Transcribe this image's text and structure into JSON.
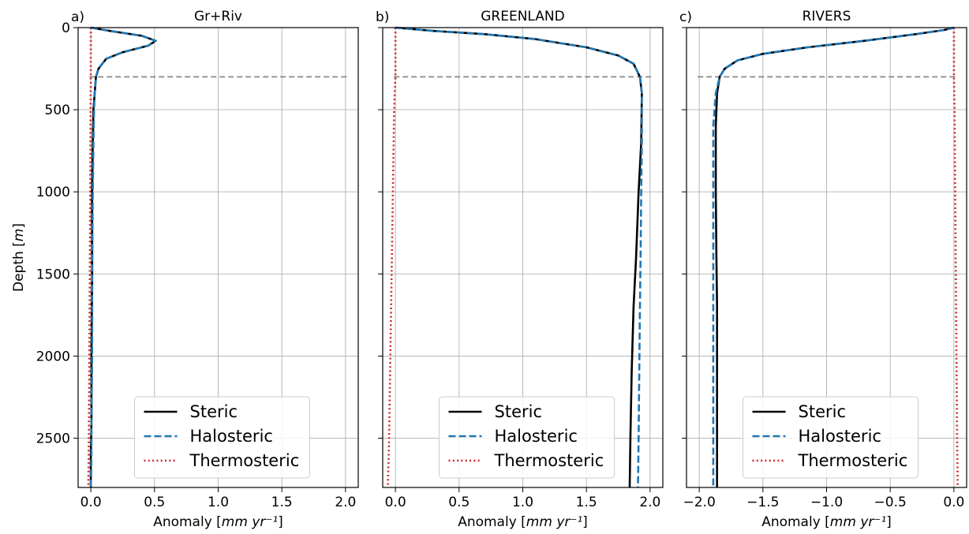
{
  "chart_data": [
    {
      "type": "line",
      "panel_label": "a)",
      "title": "Gr+Riv",
      "xlabel": "Anomaly [mm yr⁻¹]",
      "ylabel": "Depth [m]",
      "xlim": [
        -0.1,
        2.1
      ],
      "ylim": [
        2800,
        0
      ],
      "xticks": [
        0.0,
        0.5,
        1.0,
        1.5,
        2.0
      ],
      "xtick_labels": [
        "0.0",
        "0.5",
        "1.0",
        "1.5",
        "2.0"
      ],
      "yticks": [
        0,
        500,
        1000,
        1500,
        2000,
        2500
      ],
      "ytick_labels": [
        "0",
        "500",
        "1000",
        "1500",
        "2000",
        "2500"
      ],
      "grid": true,
      "legend_position": "lower-center",
      "reference_depth": 300,
      "series": [
        {
          "name": "Steric",
          "color": "#000000",
          "style": "solid",
          "x": [
            0.0,
            0.15,
            0.4,
            0.51,
            0.45,
            0.25,
            0.12,
            0.06,
            0.04,
            0.03,
            0.02,
            0.015,
            0.01,
            0.01,
            0.005,
            0.005,
            0.0,
            0.0
          ],
          "y": [
            0,
            20,
            50,
            80,
            110,
            150,
            190,
            250,
            300,
            400,
            500,
            700,
            1000,
            1500,
            2000,
            2400,
            2600,
            2800
          ]
        },
        {
          "name": "Halosteric",
          "color": "#1f77b4",
          "style": "dashed",
          "x": [
            0.0,
            0.15,
            0.4,
            0.51,
            0.45,
            0.25,
            0.12,
            0.06,
            0.04,
            0.03,
            0.025,
            0.02,
            0.015,
            0.01,
            0.01,
            0.005,
            0.005,
            0.0
          ],
          "y": [
            0,
            20,
            50,
            80,
            110,
            150,
            190,
            250,
            300,
            400,
            500,
            700,
            1000,
            1500,
            2000,
            2400,
            2600,
            2800
          ]
        },
        {
          "name": "Thermosteric",
          "color": "#d62728",
          "style": "dotted",
          "x": [
            0.0,
            0.0,
            -0.002,
            -0.005,
            -0.008,
            -0.012,
            -0.016,
            -0.02
          ],
          "y": [
            0,
            300,
            500,
            1000,
            1500,
            2000,
            2500,
            2800
          ]
        }
      ]
    },
    {
      "type": "line",
      "panel_label": "b)",
      "title": "GREENLAND",
      "xlabel": "Anomaly [mm yr⁻¹]",
      "ylabel": "",
      "xlim": [
        -0.1,
        2.1
      ],
      "ylim": [
        2800,
        0
      ],
      "xticks": [
        0.0,
        0.5,
        1.0,
        1.5,
        2.0
      ],
      "xtick_labels": [
        "0.0",
        "0.5",
        "1.0",
        "1.5",
        "2.0"
      ],
      "yticks": [
        0,
        500,
        1000,
        1500,
        2000,
        2500
      ],
      "ytick_labels": [],
      "grid": true,
      "legend_position": "lower-center",
      "reference_depth": 300,
      "series": [
        {
          "name": "Steric",
          "color": "#000000",
          "style": "solid",
          "x": [
            0.0,
            0.3,
            0.7,
            1.1,
            1.5,
            1.75,
            1.87,
            1.92,
            1.935,
            1.93,
            1.91,
            1.89,
            1.87,
            1.855,
            1.845,
            1.84
          ],
          "y": [
            0,
            20,
            40,
            70,
            120,
            170,
            220,
            300,
            400,
            700,
            1000,
            1400,
            1700,
            2100,
            2500,
            2800
          ]
        },
        {
          "name": "Halosteric",
          "color": "#1f77b4",
          "style": "dashed",
          "x": [
            0.0,
            0.3,
            0.7,
            1.1,
            1.5,
            1.75,
            1.87,
            1.92,
            1.935,
            1.935,
            1.93,
            1.925,
            1.92,
            1.915,
            1.91,
            1.905
          ],
          "y": [
            0,
            20,
            40,
            70,
            120,
            170,
            220,
            300,
            400,
            700,
            1000,
            1400,
            1700,
            2100,
            2500,
            2800
          ]
        },
        {
          "name": "Thermosteric",
          "color": "#d62728",
          "style": "dotted",
          "x": [
            0.0,
            0.0,
            -0.01,
            -0.02,
            -0.03,
            -0.04,
            -0.05,
            -0.06
          ],
          "y": [
            0,
            300,
            500,
            1000,
            1500,
            2000,
            2500,
            2800
          ]
        }
      ]
    },
    {
      "type": "line",
      "panel_label": "c)",
      "title": "RIVERS",
      "xlabel": "Anomaly [mm yr⁻¹]",
      "ylabel": "",
      "xlim": [
        -2.1,
        0.1
      ],
      "ylim": [
        2800,
        0
      ],
      "xticks": [
        -2.0,
        -1.5,
        -1.0,
        -0.5,
        0.0
      ],
      "xtick_labels": [
        "−2.0",
        "−1.5",
        "−1.0",
        "−0.5",
        "0.0"
      ],
      "yticks": [
        0,
        500,
        1000,
        1500,
        2000,
        2500
      ],
      "ytick_labels": [],
      "grid": true,
      "legend_position": "lower-center",
      "reference_depth": 300,
      "series": [
        {
          "name": "Steric",
          "color": "#000000",
          "style": "solid",
          "x": [
            0.0,
            -0.08,
            -0.3,
            -0.7,
            -1.15,
            -1.5,
            -1.7,
            -1.8,
            -1.84,
            -1.86,
            -1.87,
            -1.87,
            -1.865,
            -1.86,
            -1.86,
            -1.86,
            -1.86
          ],
          "y": [
            0,
            15,
            40,
            80,
            120,
            160,
            200,
            250,
            300,
            400,
            600,
            1000,
            1400,
            1700,
            2000,
            2400,
            2800
          ]
        },
        {
          "name": "Halosteric",
          "color": "#1f77b4",
          "style": "dashed",
          "x": [
            0.0,
            -0.08,
            -0.3,
            -0.7,
            -1.15,
            -1.5,
            -1.7,
            -1.8,
            -1.84,
            -1.87,
            -1.89,
            -1.89,
            -1.89,
            -1.89,
            -1.89,
            -1.89,
            -1.89
          ],
          "y": [
            0,
            15,
            40,
            80,
            120,
            160,
            200,
            250,
            300,
            400,
            600,
            1000,
            1400,
            1700,
            2000,
            2400,
            2800
          ]
        },
        {
          "name": "Thermosteric",
          "color": "#d62728",
          "style": "dotted",
          "x": [
            0.0,
            0.0,
            0.005,
            0.01,
            0.015,
            0.02,
            0.025,
            0.03
          ],
          "y": [
            0,
            300,
            500,
            1000,
            1500,
            2000,
            2500,
            2800
          ]
        }
      ]
    }
  ]
}
